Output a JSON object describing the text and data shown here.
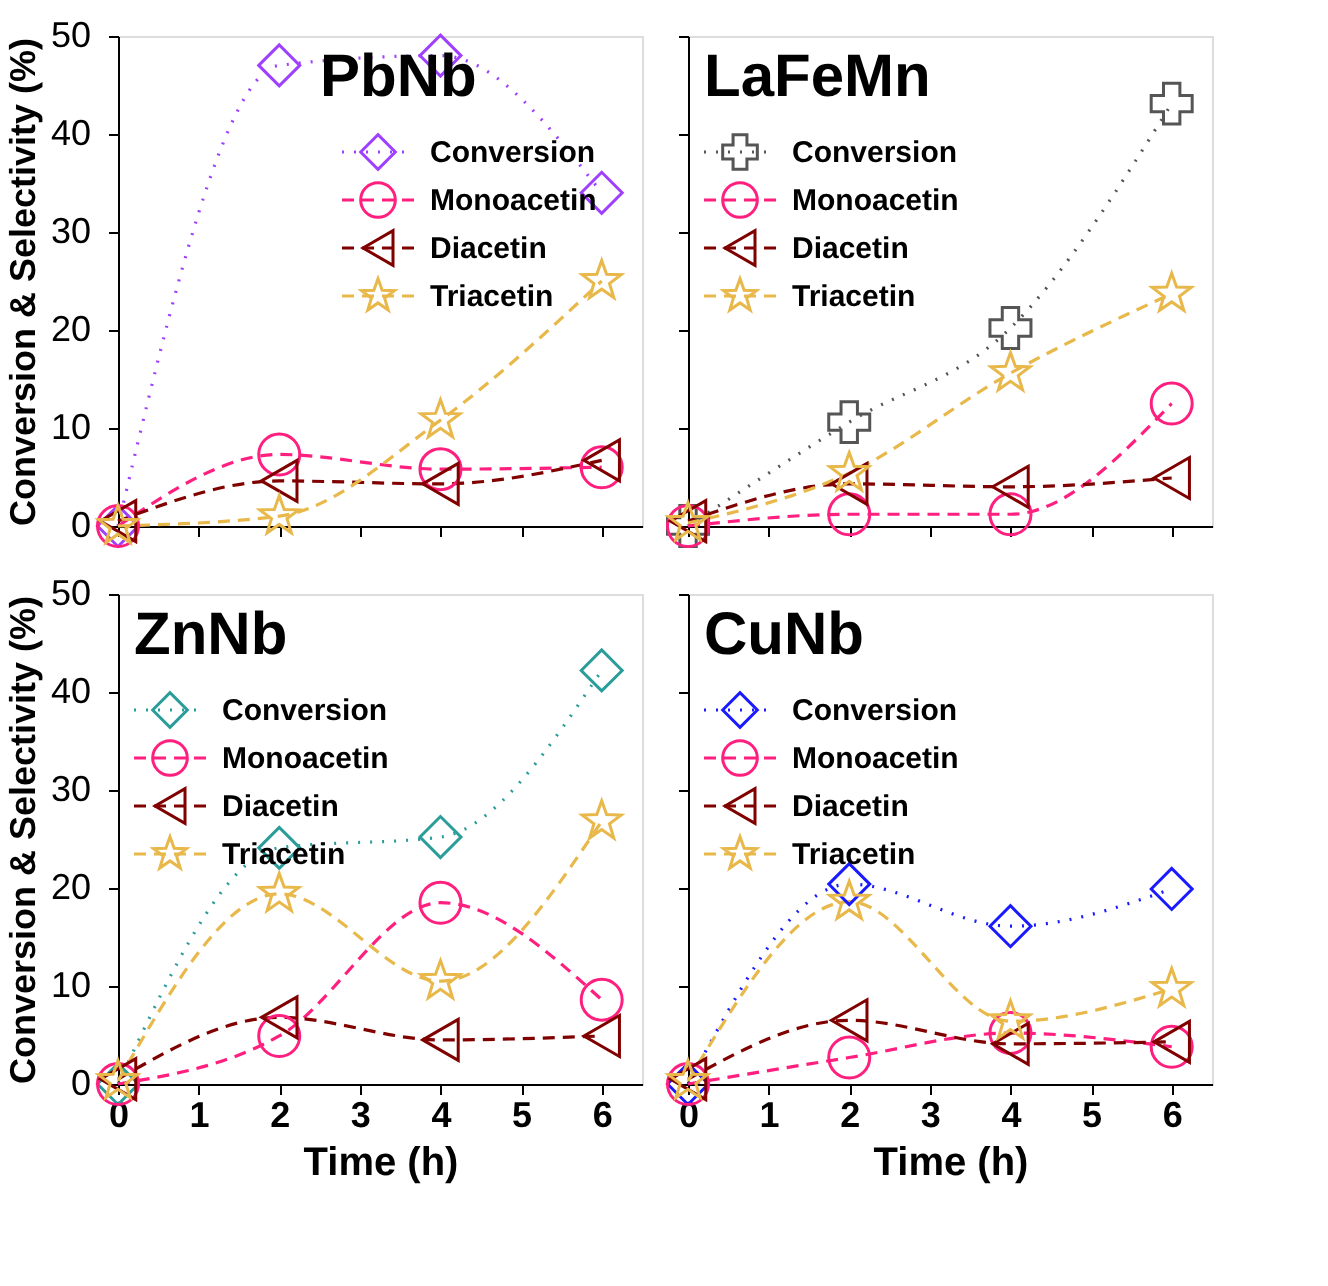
{
  "chart_data": [
    {
      "type": "line",
      "title": "PbNb",
      "ylabel": "Conversion & Selectivity (%)",
      "x": [
        0,
        2,
        4,
        6
      ],
      "xlim": [
        0,
        6.5
      ],
      "xticks": [
        0,
        1,
        2,
        3,
        4,
        5,
        6
      ],
      "ylim": [
        0,
        50
      ],
      "yticks": [
        0,
        10,
        20,
        30,
        40,
        50
      ],
      "legend": "right",
      "tick_labels": "y",
      "series": [
        {
          "name": "Conversion",
          "color": "#a040ff",
          "marker": "diamond",
          "line_style": "dotted",
          "values": [
            0,
            47,
            48,
            34
          ]
        },
        {
          "name": "Monoacetin",
          "color": "#ff1f7f",
          "marker": "circle",
          "line_style": "dashed",
          "values": [
            0,
            7.3,
            5.8,
            6
          ]
        },
        {
          "name": "Diacetin",
          "color": "#800000",
          "marker": "triangle",
          "line_style": "dashed",
          "values": [
            0.5,
            4.6,
            4.3,
            6.7
          ]
        },
        {
          "name": "Triacetin",
          "color": "#e8b84a",
          "marker": "star",
          "line_style": "dashed",
          "values": [
            0,
            1,
            10.8,
            25
          ]
        }
      ]
    },
    {
      "type": "line",
      "title": "LaFeMn",
      "x": [
        0,
        2,
        4,
        6
      ],
      "xlim": [
        0,
        6.5
      ],
      "xticks": [
        0,
        1,
        2,
        3,
        4,
        5,
        6
      ],
      "ylim": [
        0,
        50
      ],
      "yticks": [
        0,
        10,
        20,
        30,
        40,
        50
      ],
      "legend": "top left",
      "tick_labels": false,
      "series": [
        {
          "name": "Conversion",
          "color": "#555555",
          "marker": "cross",
          "line_style": "dotted",
          "values": [
            0,
            10.6,
            20.2,
            43.1
          ]
        },
        {
          "name": "Monoacetin",
          "color": "#ff1f7f",
          "marker": "circle",
          "line_style": "dashed",
          "values": [
            0,
            1.2,
            1.2,
            12.5
          ]
        },
        {
          "name": "Diacetin",
          "color": "#800000",
          "marker": "triangle",
          "line_style": "dashed",
          "values": [
            0.5,
            4.3,
            4.0,
            4.9
          ]
        },
        {
          "name": "Triacetin",
          "color": "#e8b84a",
          "marker": "star",
          "line_style": "dashed",
          "values": [
            0.3,
            5.4,
            15.6,
            23.7
          ]
        }
      ]
    },
    {
      "type": "line",
      "title": "ZnNb",
      "ylabel": "Conversion & Selectivity (%)",
      "xlabel": "Time (h)",
      "x": [
        0,
        2,
        4,
        6
      ],
      "xlim": [
        0,
        6.5
      ],
      "xticks": [
        0,
        1,
        2,
        3,
        4,
        5,
        6
      ],
      "ylim": [
        0,
        50
      ],
      "yticks": [
        0,
        10,
        20,
        30,
        40,
        50
      ],
      "legend": "top left",
      "series": [
        {
          "name": "Conversion",
          "color": "#2a9d9a",
          "marker": "diamond",
          "line_style": "dotted",
          "values": [
            0,
            24.1,
            25.2,
            42.2
          ]
        },
        {
          "name": "Monoacetin",
          "color": "#ff1f7f",
          "marker": "circle",
          "line_style": "dashed",
          "values": [
            0,
            4.9,
            18.5,
            8.6
          ]
        },
        {
          "name": "Diacetin",
          "color": "#800000",
          "marker": "triangle",
          "line_style": "dashed",
          "values": [
            0.5,
            6.8,
            4.5,
            4.9
          ]
        },
        {
          "name": "Triacetin",
          "color": "#e8b84a",
          "marker": "star",
          "line_style": "dashed",
          "values": [
            0.3,
            19.4,
            10.5,
            26.8
          ]
        }
      ]
    },
    {
      "type": "line",
      "title": "CuNb",
      "xlabel": "Time (h)",
      "x": [
        0,
        2,
        4,
        6
      ],
      "xlim": [
        0,
        6.5
      ],
      "xticks": [
        0,
        1,
        2,
        3,
        4,
        5,
        6
      ],
      "ylim": [
        0,
        50
      ],
      "yticks": [
        0,
        10,
        20,
        30,
        40,
        50
      ],
      "legend": "top left",
      "tick_labels": "x",
      "series": [
        {
          "name": "Conversion",
          "color": "#1a1aff",
          "marker": "diamond",
          "line_style": "dotted",
          "values": [
            0,
            20.4,
            16.1,
            19.9
          ]
        },
        {
          "name": "Monoacetin",
          "color": "#ff1f7f",
          "marker": "circle",
          "line_style": "dashed",
          "values": [
            0,
            2.7,
            5.2,
            3.8
          ]
        },
        {
          "name": "Diacetin",
          "color": "#800000",
          "marker": "triangle",
          "line_style": "dashed",
          "values": [
            0.5,
            6.5,
            4.1,
            4.3
          ]
        },
        {
          "name": "Triacetin",
          "color": "#e8b84a",
          "marker": "star",
          "line_style": "dashed",
          "values": [
            0.3,
            18.6,
            6.4,
            9.7
          ]
        }
      ]
    }
  ]
}
